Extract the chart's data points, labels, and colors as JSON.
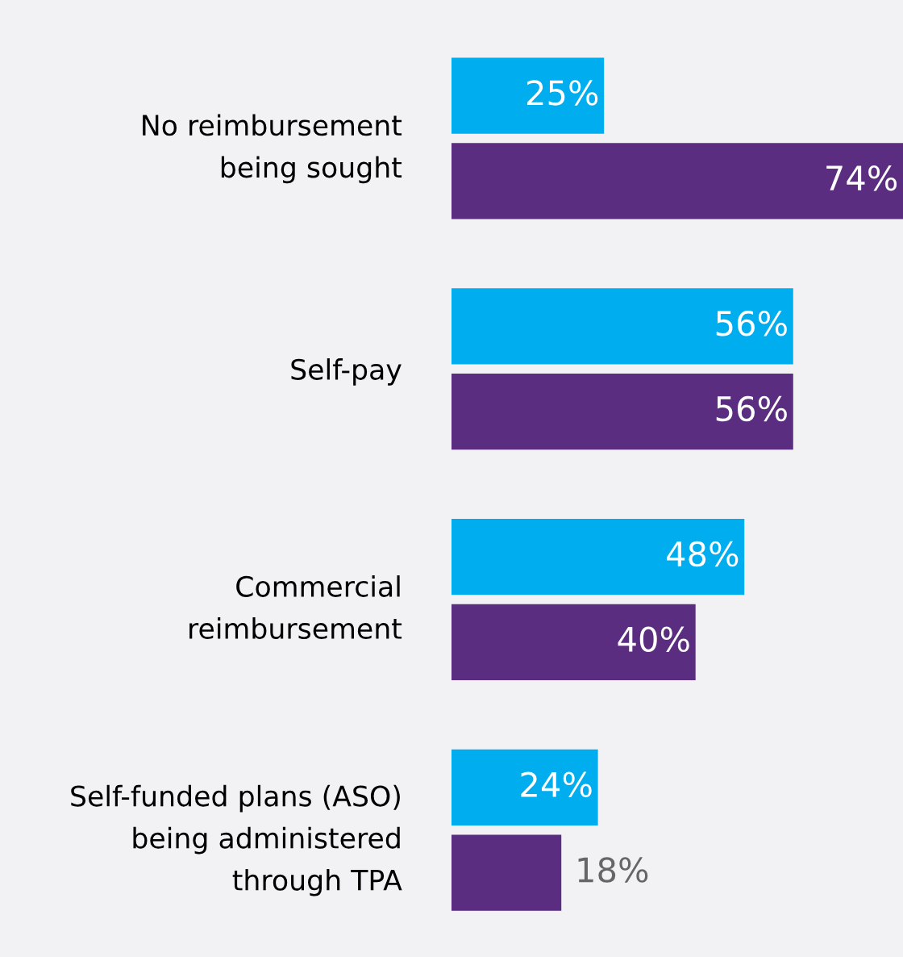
{
  "chart_data": {
    "type": "bar",
    "orientation": "horizontal",
    "categories": [
      "No reimbursement\nbeing sought",
      "Self-pay",
      "Commercial\nreimbursement",
      "Self-funded plans (ASO)\nbeing administered\nthrough TPA"
    ],
    "series": [
      {
        "color": "#00adef",
        "values": [
          25,
          56,
          48,
          24
        ],
        "value_labels": [
          "25%",
          "56%",
          "48%",
          "24%"
        ]
      },
      {
        "color": "#5b2d80",
        "values": [
          74,
          56,
          40,
          18
        ],
        "value_labels": [
          "74%",
          "56%",
          "40%",
          "18%"
        ]
      }
    ],
    "grid": false
  }
}
